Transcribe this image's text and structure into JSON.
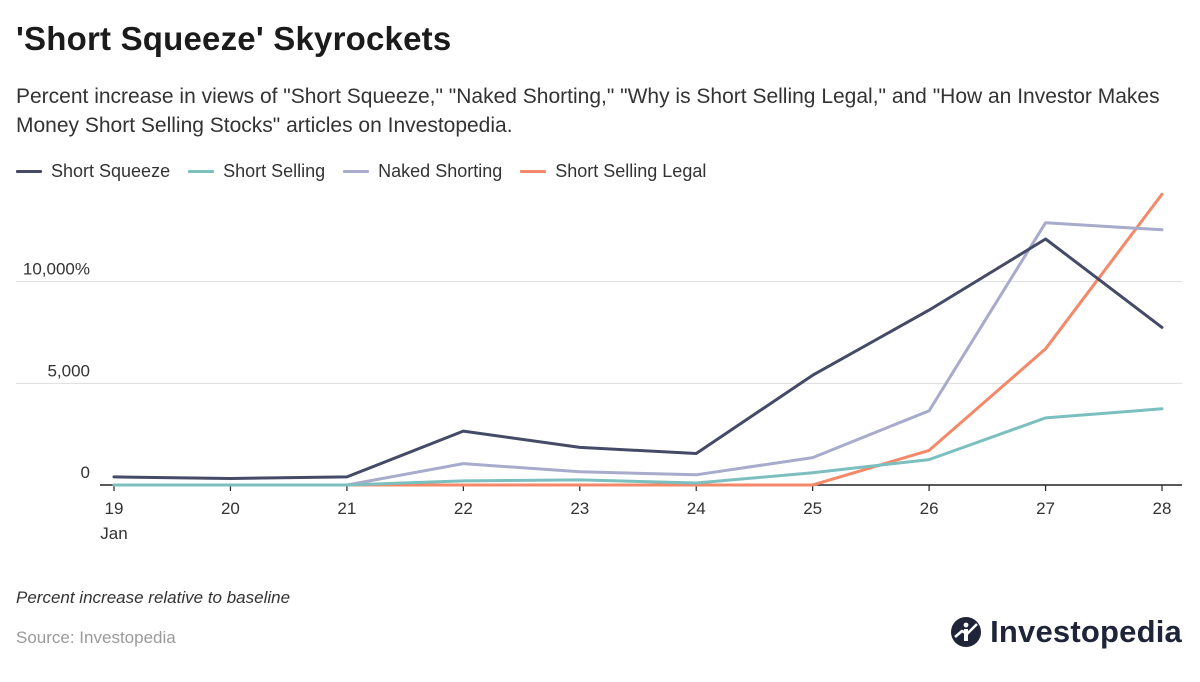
{
  "title": "'Short Squeeze' Skyrockets",
  "subtitle": "Percent increase in views of \"Short Squeeze,\" \"Naked Shorting,\" \"Why is Short Selling Legal,\" and \"How an Investor Makes Money Short Selling Stocks\" articles on Investopedia.",
  "note": "Percent increase relative to baseline",
  "source": "Source: Investopedia",
  "brand": "Investopedia",
  "colors": {
    "short_squeeze": "#454a66",
    "short_selling": "#7bbfbf",
    "naked_shorting": "#a8abcb",
    "short_selling_legal": "#f4896a",
    "gridline": "#dddddd",
    "axis": "#222222"
  },
  "chart_data": {
    "type": "line",
    "title": "'Short Squeeze' Skyrockets",
    "xlabel": "",
    "ylabel": "",
    "x": [
      "19",
      "20",
      "21",
      "22",
      "23",
      "24",
      "25",
      "26",
      "27",
      "28"
    ],
    "x_sublabel": "Jan",
    "y_ticks": [
      0,
      5000,
      10000
    ],
    "y_tick_labels": [
      "0",
      "5,000",
      "10,000%"
    ],
    "ylim": [
      0,
      15000
    ],
    "grid": true,
    "legend": "top-left",
    "series": [
      {
        "name": "Short Squeeze",
        "color_key": "short_squeeze",
        "values": [
          400,
          320,
          400,
          2650,
          1850,
          1550,
          5400,
          8600,
          12100,
          7750
        ]
      },
      {
        "name": "Short Selling",
        "color_key": "short_selling",
        "values": [
          0,
          0,
          0,
          200,
          250,
          100,
          600,
          1250,
          3300,
          3750
        ]
      },
      {
        "name": "Naked Shorting",
        "color_key": "naked_shorting",
        "values": [
          0,
          0,
          0,
          1050,
          650,
          500,
          1350,
          3650,
          12900,
          12550
        ]
      },
      {
        "name": "Short Selling Legal",
        "color_key": "short_selling_legal",
        "values": [
          0,
          0,
          0,
          0,
          0,
          0,
          0,
          1700,
          6700,
          14300
        ]
      }
    ]
  }
}
